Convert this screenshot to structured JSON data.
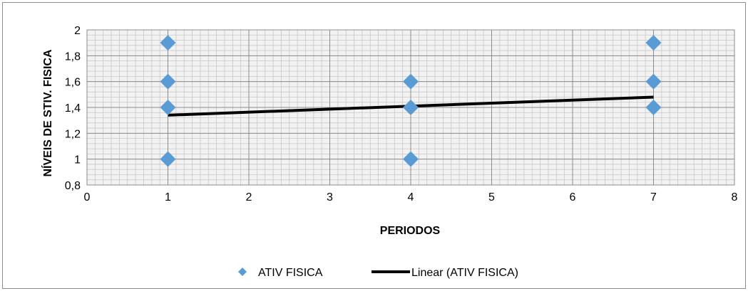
{
  "chart_data": {
    "type": "scatter",
    "title": "",
    "xlabel": "PERIODOS",
    "ylabel": "NÍVEIS DE STIV. FISICA",
    "xlim": [
      0,
      8
    ],
    "ylim": [
      0.8,
      2
    ],
    "x_ticks": [
      0,
      1,
      2,
      3,
      4,
      5,
      6,
      7,
      8
    ],
    "x_tick_labels": [
      "0",
      "1",
      "2",
      "3",
      "4",
      "5",
      "6",
      "7",
      "8"
    ],
    "y_ticks": [
      0.8,
      1,
      1.2,
      1.4,
      1.6,
      1.8,
      2
    ],
    "y_tick_labels": [
      "0,8",
      "1",
      "1,2",
      "1,4",
      "1,6",
      "1,8",
      "2"
    ],
    "grid": true,
    "legend_position": "bottom",
    "series": [
      {
        "name": "ATIV FISICA",
        "color": "#5b9bd5",
        "marker": "diamond",
        "points": [
          {
            "x": 1,
            "y": 1.9
          },
          {
            "x": 1,
            "y": 1.6
          },
          {
            "x": 1,
            "y": 1.4
          },
          {
            "x": 1,
            "y": 1.0
          },
          {
            "x": 4,
            "y": 1.6
          },
          {
            "x": 4,
            "y": 1.4
          },
          {
            "x": 4,
            "y": 1.0
          },
          {
            "x": 7,
            "y": 1.9
          },
          {
            "x": 7,
            "y": 1.6
          },
          {
            "x": 7,
            "y": 1.4
          }
        ]
      }
    ],
    "trendline": {
      "name": "Linear (ATIV FISICA)",
      "color": "#000000",
      "type": "linear",
      "x": [
        1,
        7
      ],
      "y": [
        1.34,
        1.48
      ]
    }
  }
}
